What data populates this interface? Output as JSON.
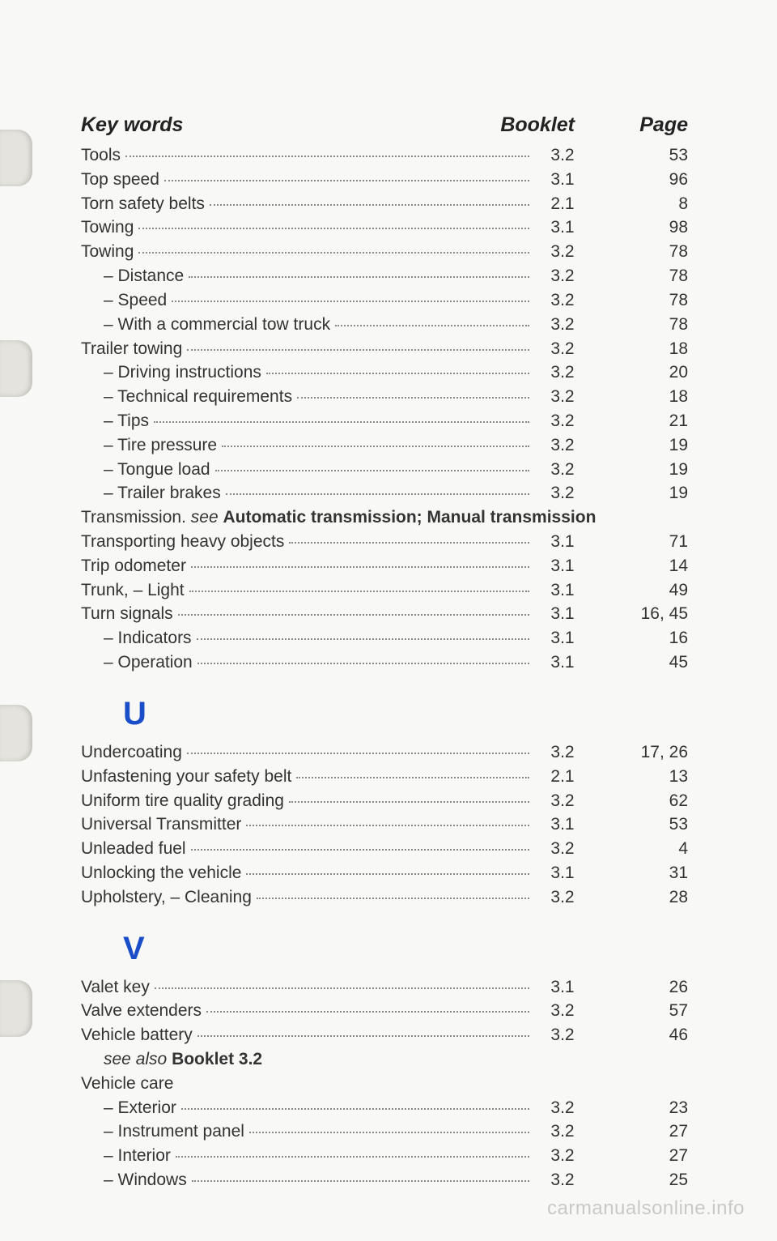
{
  "header": {
    "keywords": "Key words",
    "booklet": "Booklet",
    "page": "Page"
  },
  "sections": {
    "T": {
      "entries": [
        {
          "label": "Tools",
          "booklet": "3.2",
          "page": "53",
          "sub": false
        },
        {
          "label": "Top speed",
          "booklet": "3.1",
          "page": "96",
          "sub": false
        },
        {
          "label": "Torn safety belts",
          "booklet": "2.1",
          "page": "8",
          "sub": false
        },
        {
          "label": "Towing",
          "booklet": "3.1",
          "page": "98",
          "sub": false
        },
        {
          "label": "Towing",
          "booklet": "3.2",
          "page": "78",
          "sub": false
        },
        {
          "label": "– Distance",
          "booklet": "3.2",
          "page": "78",
          "sub": true
        },
        {
          "label": "– Speed",
          "booklet": "3.2",
          "page": "78",
          "sub": true
        },
        {
          "label": "– With a commercial tow truck",
          "booklet": "3.2",
          "page": "78",
          "sub": true
        },
        {
          "label": "Trailer towing",
          "booklet": "3.2",
          "page": "18",
          "sub": false
        },
        {
          "label": "– Driving instructions",
          "booklet": "3.2",
          "page": "20",
          "sub": true
        },
        {
          "label": "– Technical requirements",
          "booklet": "3.2",
          "page": "18",
          "sub": true
        },
        {
          "label": "– Tips",
          "booklet": "3.2",
          "page": "21",
          "sub": true
        },
        {
          "label": "– Tire pressure",
          "booklet": "3.2",
          "page": "19",
          "sub": true
        },
        {
          "label": "– Tongue load",
          "booklet": "3.2",
          "page": "19",
          "sub": true
        },
        {
          "label": "– Trailer brakes",
          "booklet": "3.2",
          "page": "19",
          "sub": true
        }
      ],
      "crossref": {
        "prefix": "Transmission. ",
        "see": "see ",
        "ref": "Automatic transmission; Manual transmission"
      },
      "entries2": [
        {
          "label": "Transporting heavy objects",
          "booklet": "3.1",
          "page": "71",
          "sub": false
        },
        {
          "label": "Trip odometer",
          "booklet": "3.1",
          "page": "14",
          "sub": false
        },
        {
          "label": "Trunk, – Light",
          "booklet": "3.1",
          "page": "49",
          "sub": false
        },
        {
          "label": "Turn signals",
          "booklet": "3.1",
          "page": "16, 45",
          "sub": false
        },
        {
          "label": "– Indicators",
          "booklet": "3.1",
          "page": "16",
          "sub": true
        },
        {
          "label": "– Operation",
          "booklet": "3.1",
          "page": "45",
          "sub": true
        }
      ]
    },
    "U": {
      "heading": "U",
      "entries": [
        {
          "label": "Undercoating",
          "booklet": "3.2",
          "page": "17, 26",
          "sub": false
        },
        {
          "label": "Unfastening your safety belt",
          "booklet": "2.1",
          "page": "13",
          "sub": false
        },
        {
          "label": "Uniform tire quality grading",
          "booklet": "3.2",
          "page": "62",
          "sub": false
        },
        {
          "label": "Universal Transmitter",
          "booklet": "3.1",
          "page": "53",
          "sub": false
        },
        {
          "label": "Unleaded fuel",
          "booklet": "3.2",
          "page": "4",
          "sub": false
        },
        {
          "label": "Unlocking the vehicle",
          "booklet": "3.1",
          "page": "31",
          "sub": false
        },
        {
          "label": "Upholstery, – Cleaning",
          "booklet": "3.2",
          "page": "28",
          "sub": false
        }
      ]
    },
    "V": {
      "heading": "V",
      "entries": [
        {
          "label": "Valet key",
          "booklet": "3.1",
          "page": "26",
          "sub": false
        },
        {
          "label": "Valve extenders",
          "booklet": "3.2",
          "page": "57",
          "sub": false
        },
        {
          "label": "Vehicle battery",
          "booklet": "3.2",
          "page": "46",
          "sub": false
        }
      ],
      "seealso": {
        "see": "see also ",
        "ref": "Booklet 3.2"
      },
      "plain_label": "Vehicle care",
      "entries2": [
        {
          "label": "– Exterior",
          "booklet": "3.2",
          "page": "23",
          "sub": true
        },
        {
          "label": "– Instrument panel",
          "booklet": "3.2",
          "page": "27",
          "sub": true
        },
        {
          "label": "– Interior",
          "booklet": "3.2",
          "page": "27",
          "sub": true
        },
        {
          "label": "– Windows",
          "booklet": "3.2",
          "page": "25",
          "sub": true
        }
      ]
    }
  },
  "watermark": "carmanualsonline.info"
}
